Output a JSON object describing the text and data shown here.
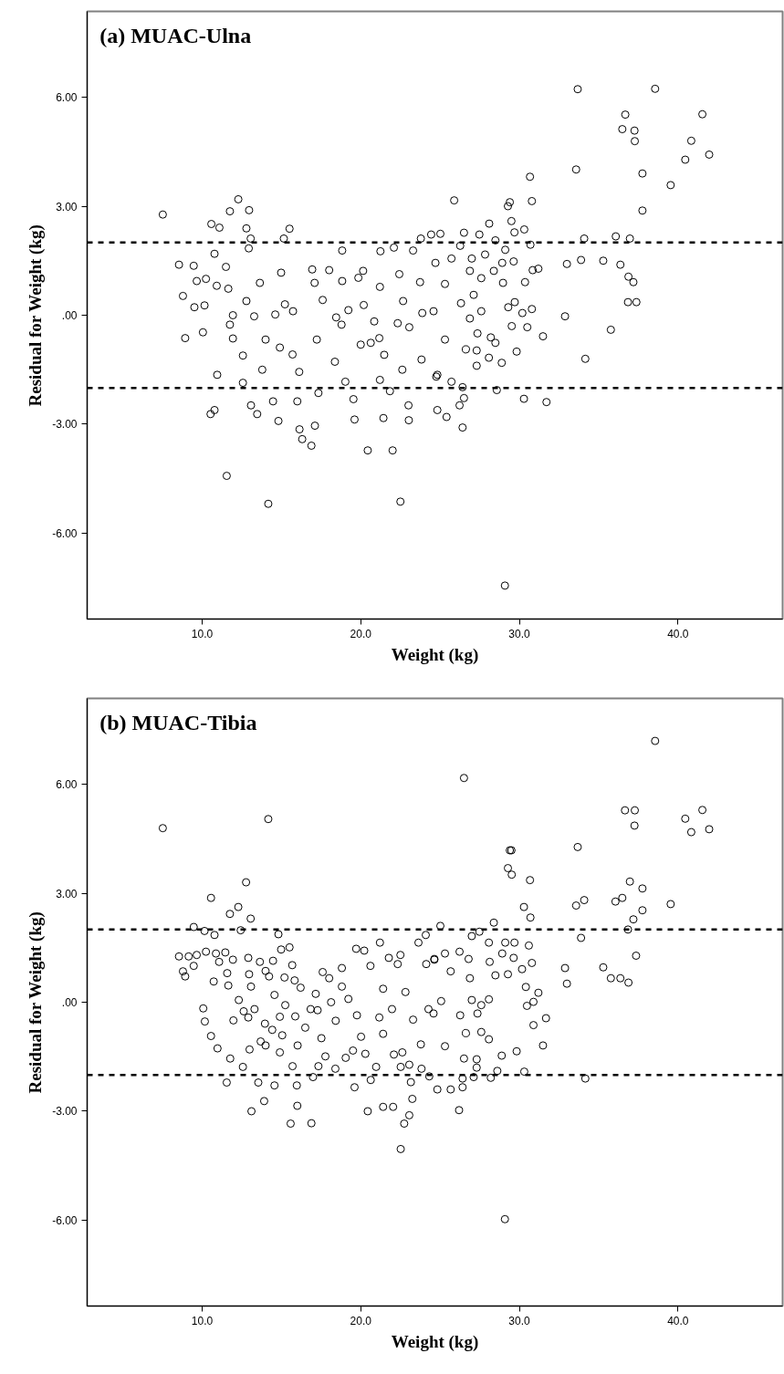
{
  "chart_data": [
    {
      "type": "scatter",
      "title": "(a) MUAC-Ulna",
      "xlabel": "Weight (kg)",
      "ylabel": "Residual for Weight (kg)",
      "xlim": [
        2.75,
        46.6
      ],
      "ylim": [
        -8.36,
        8.36
      ],
      "xticks": [
        {
          "value": 10,
          "label": "10.0"
        },
        {
          "value": 20,
          "label": "20.0"
        },
        {
          "value": 30,
          "label": "30.0"
        },
        {
          "value": 40,
          "label": "40.0"
        }
      ],
      "yticks": [
        {
          "value": -6,
          "label": "-6.00"
        },
        {
          "value": -3,
          "label": "-3.00"
        },
        {
          "value": 0,
          "label": ".00"
        },
        {
          "value": 3,
          "label": "3.00"
        },
        {
          "value": 6,
          "label": "6.00"
        }
      ],
      "grid": false,
      "marker": "circle",
      "ref_lines": [
        {
          "axis": "y",
          "value": 2,
          "color": "#000000",
          "line_style": "dashed"
        },
        {
          "axis": "y",
          "value": -2,
          "color": "#000000",
          "line_style": "dashed"
        }
      ],
      "series": [
        {
          "color": "#000000",
          "x": [
            7.52,
            8.54,
            9.47,
            8.79,
            9.66,
            10.24,
            9.51,
            10.15,
            8.93,
            10.05,
            10.58,
            11.09,
            10.78,
            10.92,
            10.53,
            10.78,
            10.95,
            11.55,
            11.75,
            12.28,
            12.96,
            12.79,
            13.06,
            12.94,
            11.5,
            11.65,
            11.94,
            11.75,
            11.94,
            12.57,
            12.57,
            13.08,
            13.47,
            12.79,
            13.28,
            13.64,
            14.0,
            13.79,
            14.17,
            14.47,
            14.81,
            14.61,
            14.98,
            15.15,
            15.51,
            15.22,
            15.73,
            15.7,
            14.9,
            16.12,
            16.0,
            16.14,
            16.31,
            16.89,
            17.11,
            17.33,
            16.94,
            17.09,
            18.01,
            17.6,
            17.23,
            18.45,
            18.37,
            18.83,
            18.83,
            18.79,
            19.03,
            19.54,
            19.61,
            19.22,
            19.85,
            20.15,
            20.19,
            20.0,
            20.63,
            20.85,
            20.44,
            21.24,
            21.21,
            21.17,
            21.48,
            21.21,
            21.84,
            21.43,
            22.01,
            22.5,
            22.09,
            22.43,
            22.67,
            22.33,
            23.06,
            22.62,
            23.01,
            23.03,
            23.3,
            23.79,
            23.74,
            23.88,
            23.83,
            24.44,
            24.76,
            25.02,
            25.89,
            26.51,
            26.27,
            24.71,
            25.72,
            25.31,
            24.59,
            25.31,
            24.83,
            25.41,
            24.83,
            26.42,
            26.51,
            26.23,
            26.42,
            25.72,
            27.0,
            27.48,
            28.1,
            28.49,
            27.84,
            26.88,
            27.6,
            27.12,
            26.32,
            27.6,
            26.88,
            27.36,
            27.31,
            26.63,
            27.31,
            28.2,
            28.49,
            28.08,
            28.89,
            28.58,
            28.39,
            28.92,
            28.97,
            29.11,
            29.28,
            29.4,
            29.5,
            29.69,
            30.31,
            30.7,
            29.64,
            29.3,
            29.71,
            29.52,
            29.83,
            30.19,
            30.5,
            30.36,
            30.84,
            31.2,
            30.79,
            31.49,
            30.67,
            30.79,
            30.29,
            31.71,
            29.09,
            32.88,
            33.0,
            33.58,
            33.68,
            33.89,
            34.09,
            34.16,
            35.29,
            35.77,
            36.08,
            36.37,
            36.49,
            36.68,
            36.97,
            36.88,
            37.19,
            36.85,
            37.38,
            37.26,
            37.28,
            37.76,
            37.76,
            38.56,
            39.54,
            40.46,
            40.84,
            41.54,
            41.97
          ],
          "values": [
            2.77,
            1.39,
            1.36,
            0.53,
            0.94,
            1.0,
            0.22,
            0.27,
            -0.63,
            -0.47,
            2.51,
            2.41,
            1.69,
            0.81,
            -2.72,
            -2.61,
            -1.64,
            -4.42,
            2.86,
            3.19,
            2.89,
            2.39,
            2.11,
            1.84,
            1.33,
            0.73,
            0.0,
            -0.26,
            -0.64,
            -1.11,
            -1.86,
            -2.48,
            -2.72,
            0.39,
            -0.03,
            0.89,
            -0.67,
            -1.5,
            -5.19,
            -2.37,
            -2.91,
            0.02,
            1.17,
            2.11,
            2.38,
            0.3,
            0.11,
            -1.08,
            -0.89,
            -1.56,
            -2.37,
            -3.14,
            -3.41,
            -3.59,
            -3.04,
            -2.14,
            1.26,
            0.89,
            1.24,
            0.42,
            -0.67,
            -0.06,
            -1.28,
            1.78,
            0.94,
            -0.26,
            -1.83,
            -2.31,
            -2.87,
            0.14,
            1.03,
            1.22,
            0.28,
            -0.81,
            -0.76,
            -0.17,
            -3.72,
            1.76,
            0.78,
            -0.63,
            -1.09,
            -1.78,
            -2.09,
            -2.83,
            -3.72,
            -5.13,
            1.86,
            1.13,
            0.39,
            -0.22,
            -0.33,
            -1.5,
            -2.48,
            -2.89,
            1.78,
            2.11,
            0.91,
            0.06,
            -1.22,
            2.22,
            -1.69,
            2.24,
            3.16,
            2.27,
            1.91,
            1.44,
            1.56,
            0.86,
            0.11,
            -0.67,
            -1.64,
            -2.8,
            -2.61,
            -3.09,
            -2.28,
            -2.48,
            -1.98,
            -1.83,
            1.56,
            2.22,
            2.52,
            2.06,
            1.67,
            1.22,
            1.02,
            0.56,
            0.33,
            0.11,
            -0.09,
            -0.5,
            -0.97,
            -0.94,
            -1.39,
            -0.61,
            -0.76,
            -1.17,
            -1.31,
            -2.06,
            1.22,
            1.44,
            0.89,
            1.8,
            3.0,
            3.11,
            2.59,
            2.28,
            2.36,
            1.94,
            1.48,
            0.22,
            0.36,
            -0.3,
            -1.0,
            0.06,
            -0.33,
            0.91,
            1.24,
            1.28,
            0.17,
            -0.58,
            3.81,
            3.14,
            -2.3,
            -2.39,
            -7.44,
            -0.03,
            1.41,
            4.01,
            6.22,
            1.52,
            2.11,
            -1.2,
            1.5,
            -0.4,
            2.17,
            1.39,
            5.12,
            5.52,
            2.11,
            1.06,
            0.91,
            0.36,
            0.36,
            5.08,
            4.79,
            3.9,
            2.88,
            6.23,
            3.58,
            4.28,
            4.8,
            5.53,
            4.42
          ]
        }
      ]
    },
    {
      "type": "scatter",
      "title": "(b) MUAC-Tibia",
      "xlabel": "Weight (kg)",
      "ylabel": "Residual for Weight (kg)",
      "xlim": [
        2.75,
        46.6
      ],
      "ylim": [
        -8.36,
        8.36
      ],
      "xticks": [
        {
          "value": 10,
          "label": "10.0"
        },
        {
          "value": 20,
          "label": "20.0"
        },
        {
          "value": 30,
          "label": "30.0"
        },
        {
          "value": 40,
          "label": "40.0"
        }
      ],
      "yticks": [
        {
          "value": -6,
          "label": "-6.00"
        },
        {
          "value": -3,
          "label": "-3.00"
        },
        {
          "value": 0,
          "label": ".00"
        },
        {
          "value": 3,
          "label": "3.00"
        },
        {
          "value": 6,
          "label": "6.00"
        }
      ],
      "grid": false,
      "marker": "circle",
      "ref_lines": [
        {
          "axis": "y",
          "value": 2,
          "color": "#000000",
          "line_style": "dashed"
        },
        {
          "axis": "y",
          "value": -2,
          "color": "#000000",
          "line_style": "dashed"
        }
      ],
      "series": [
        {
          "color": "#000000",
          "x": [
            7.52,
            14.17,
            12.77,
            10.56,
            11.75,
            12.28,
            13.06,
            9.47,
            10.15,
            10.78,
            12.43,
            8.54,
            9.15,
            9.66,
            10.24,
            8.79,
            8.93,
            9.47,
            10.87,
            11.46,
            11.07,
            11.94,
            11.58,
            10.73,
            11.65,
            10.07,
            10.17,
            11.97,
            10.56,
            10.97,
            11.77,
            12.57,
            11.55,
            12.91,
            12.96,
            12.31,
            12.62,
            12.91,
            13.3,
            12.99,
            13.08,
            13.64,
            14.0,
            14.47,
            14.81,
            14.98,
            15.51,
            14.22,
            14.56,
            13.96,
            14.42,
            13.69,
            14.0,
            14.9,
            15.05,
            14.9,
            13.54,
            14.56,
            13.91,
            13.11,
            15.68,
            15.19,
            15.83,
            15.24,
            15.87,
            16.21,
            16.5,
            16.02,
            15.7,
            15.97,
            16.0,
            15.58,
            16.89,
            16.84,
            17.16,
            17.6,
            17.28,
            17.52,
            16.99,
            17.33,
            17.77,
            18.42,
            18.13,
            18.01,
            18.81,
            18.81,
            18.4,
            19.05,
            19.51,
            19.22,
            19.61,
            19.71,
            20.22,
            20.61,
            19.76,
            20.02,
            20.29,
            20.44,
            20.63,
            21.21,
            21.41,
            21.17,
            21.41,
            20.97,
            21.41,
            22.04,
            21.77,
            22.5,
            22.33,
            21.97,
            22.09,
            22.62,
            22.52,
            23.06,
            23.16,
            23.25,
            23.06,
            22.74,
            22.52,
            22.82,
            23.3,
            23.64,
            24.1,
            23.79,
            23.83,
            24.32,
            24.13,
            24.64,
            24.27,
            26.51,
            38.56,
            36.66,
            37.28,
            37.26,
            40.46,
            40.84,
            41.54,
            41.97,
            33.68,
            29.28,
            29.4,
            29.5,
            29.52,
            30.67,
            30.29,
            30.7,
            33.58,
            34.09,
            36.06,
            36.49,
            36.97,
            37.76,
            37.76,
            37.19,
            36.85,
            39.54,
            33.89,
            37.36,
            32.88,
            33.0,
            35.29,
            35.77,
            36.37,
            36.88,
            28.39,
            25.02,
            27.48,
            27.0,
            28.08,
            29.11,
            29.69,
            30.6,
            30.79,
            30.17,
            28.13,
            28.92,
            29.64,
            29.28,
            28.49,
            26.8,
            26.23,
            25.31,
            24.64,
            25.67,
            26.88,
            30.41,
            31.2,
            30.89,
            28.08,
            30.48,
            31.68,
            30.89,
            31.49,
            29.83,
            28.89,
            28.61,
            30.31,
            27.31,
            27.31,
            28.2,
            27.12,
            26.42,
            26.42,
            25.67,
            24.83,
            26.2,
            34.16,
            26.51,
            27.6,
            28.08,
            26.63,
            25.31,
            27.36,
            27.6,
            27.0,
            26.27,
            25.07,
            24.59,
            29.09
          ],
          "values": [
            4.79,
            5.04,
            3.3,
            2.87,
            2.43,
            2.62,
            2.3,
            2.07,
            1.96,
            1.85,
            1.98,
            1.26,
            1.26,
            1.3,
            1.39,
            0.85,
            0.71,
            1.0,
            1.34,
            1.37,
            1.11,
            1.17,
            0.8,
            0.57,
            0.46,
            -0.17,
            -0.53,
            -0.5,
            -0.93,
            -1.27,
            -1.55,
            -1.78,
            -2.21,
            1.22,
            0.77,
            0.06,
            -0.25,
            -0.42,
            -0.19,
            -1.3,
            0.43,
            1.11,
            0.86,
            1.14,
            1.87,
            1.45,
            1.51,
            0.71,
            0.2,
            -0.59,
            -0.76,
            -1.08,
            -1.19,
            -0.4,
            -0.91,
            -1.38,
            -2.21,
            -2.29,
            -2.72,
            -3.0,
            1.02,
            0.68,
            0.6,
            -0.08,
            -0.39,
            0.4,
            -0.7,
            -1.19,
            -1.76,
            -2.29,
            -2.85,
            -3.34,
            -3.33,
            -0.19,
            0.23,
            0.83,
            -0.22,
            -0.99,
            -2.06,
            -1.76,
            -1.49,
            -0.51,
            0.0,
            0.66,
            0.94,
            0.43,
            -1.83,
            -1.53,
            -1.33,
            0.09,
            -2.34,
            1.47,
            1.42,
            1.0,
            -0.36,
            -0.95,
            -1.42,
            -3.0,
            -2.14,
            1.64,
            0.37,
            -0.42,
            -0.87,
            -1.78,
            -2.88,
            -2.88,
            1.22,
            1.3,
            1.05,
            -0.19,
            -1.44,
            -1.38,
            -1.78,
            -1.72,
            -2.2,
            -2.66,
            -3.11,
            -3.34,
            -4.04,
            0.28,
            -0.48,
            1.64,
            1.85,
            -1.16,
            -1.83,
            -2.04,
            1.05,
            1.19,
            -0.19,
            6.17,
            7.19,
            5.28,
            5.28,
            4.86,
            5.05,
            4.68,
            5.29,
            4.76,
            4.27,
            3.69,
            4.18,
            4.18,
            3.51,
            3.36,
            2.62,
            2.33,
            2.66,
            2.81,
            2.77,
            2.87,
            3.32,
            3.13,
            2.53,
            2.28,
            2.0,
            2.7,
            1.77,
            1.28,
            0.94,
            0.51,
            0.96,
            0.66,
            0.66,
            0.54,
            2.19,
            2.1,
            1.94,
            1.82,
            1.64,
            1.64,
            1.64,
            1.56,
            1.08,
            0.91,
            1.11,
            1.34,
            1.22,
            0.77,
            0.74,
            1.19,
            1.39,
            1.34,
            1.17,
            0.85,
            0.66,
            0.42,
            0.26,
            0.01,
            0.08,
            -0.1,
            -0.44,
            -0.63,
            -1.19,
            -1.35,
            -1.47,
            -1.89,
            -1.91,
            -1.57,
            -1.8,
            -2.08,
            -2.06,
            -2.1,
            -2.34,
            -2.4,
            -2.4,
            -2.97,
            -2.1,
            -1.55,
            -0.82,
            -1.02,
            -0.85,
            -1.21,
            -0.31,
            -0.08,
            0.06,
            -0.36,
            0.03,
            -0.31,
            -5.97
          ]
        }
      ]
    }
  ]
}
